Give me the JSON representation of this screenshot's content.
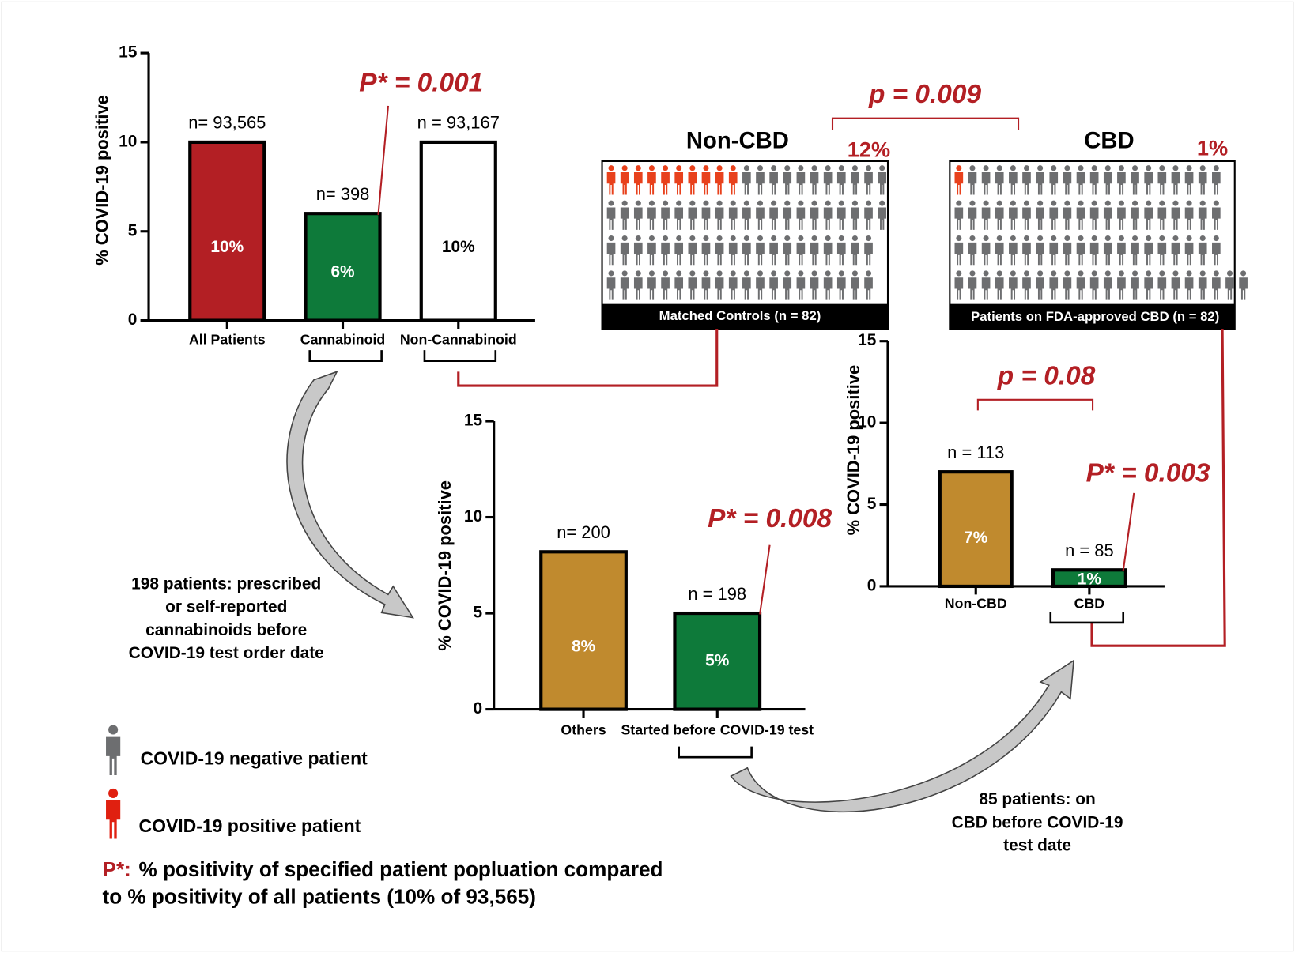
{
  "chart_data": [
    {
      "type": "bar",
      "ylabel": "% COVID-19 positive",
      "categories": [
        "All Patients",
        "Cannabinoid",
        "Non-Cannabinoid"
      ],
      "values": [
        10,
        6,
        10
      ],
      "value_labels": [
        "10%",
        "6%",
        "10%"
      ],
      "colors": [
        "#b31f24",
        "#0e7a3a",
        "#ffffff"
      ],
      "n_labels": [
        "n= 93,565",
        "n= 398",
        "n = 93,167"
      ],
      "ylim": [
        0,
        15
      ],
      "yticks": [
        0,
        5,
        10,
        15
      ],
      "annotations": [
        "P* = 0.001"
      ]
    },
    {
      "type": "bar",
      "ylabel": "% COVID-19 positive",
      "categories": [
        "Others",
        "Started before COVID-19 test"
      ],
      "values": [
        8.2,
        5
      ],
      "value_labels": [
        "8%",
        "5%"
      ],
      "colors": [
        "#c08a2e",
        "#0e7a3a"
      ],
      "n_labels": [
        "n= 200",
        "n = 198"
      ],
      "ylim": [
        0,
        15
      ],
      "yticks": [
        0,
        5,
        10,
        15
      ],
      "annotations": [
        "P* = 0.008"
      ],
      "note": [
        "198 patients: prescribed",
        "or self-reported",
        "cannabinoids before",
        "COVID-19 test order date"
      ]
    },
    {
      "type": "bar",
      "ylabel": "% COVID-19 positive",
      "categories": [
        "Non-CBD",
        "CBD"
      ],
      "values": [
        7,
        1
      ],
      "value_labels": [
        "7%",
        "1%"
      ],
      "colors": [
        "#c08a2e",
        "#0e7a3a"
      ],
      "n_labels": [
        "n = 113",
        "n = 85"
      ],
      "ylim": [
        0,
        15
      ],
      "yticks": [
        0,
        5,
        10,
        15
      ],
      "annotations": [
        "p = 0.08",
        "P* = 0.003"
      ],
      "note": [
        "85 patients: on",
        "CBD before COVID-19",
        "test date"
      ]
    }
  ],
  "panels": [
    {
      "title": "Non-CBD",
      "percent": "12%",
      "caption": "Matched Controls (n = 82)"
    },
    {
      "title": "CBD",
      "percent": "1%",
      "caption": "Patients on FDA-approved CBD (n = 82)"
    }
  ],
  "comparison": "p = 0.009",
  "legend": [
    "COVID-19 negative patient",
    "COVID-19 positive patient"
  ],
  "footnote": {
    "marker": "P*:",
    "lines": [
      "% positivity of specified patient popluation compared",
      "to % positivity of all patients (10% of 93,565)"
    ]
  }
}
